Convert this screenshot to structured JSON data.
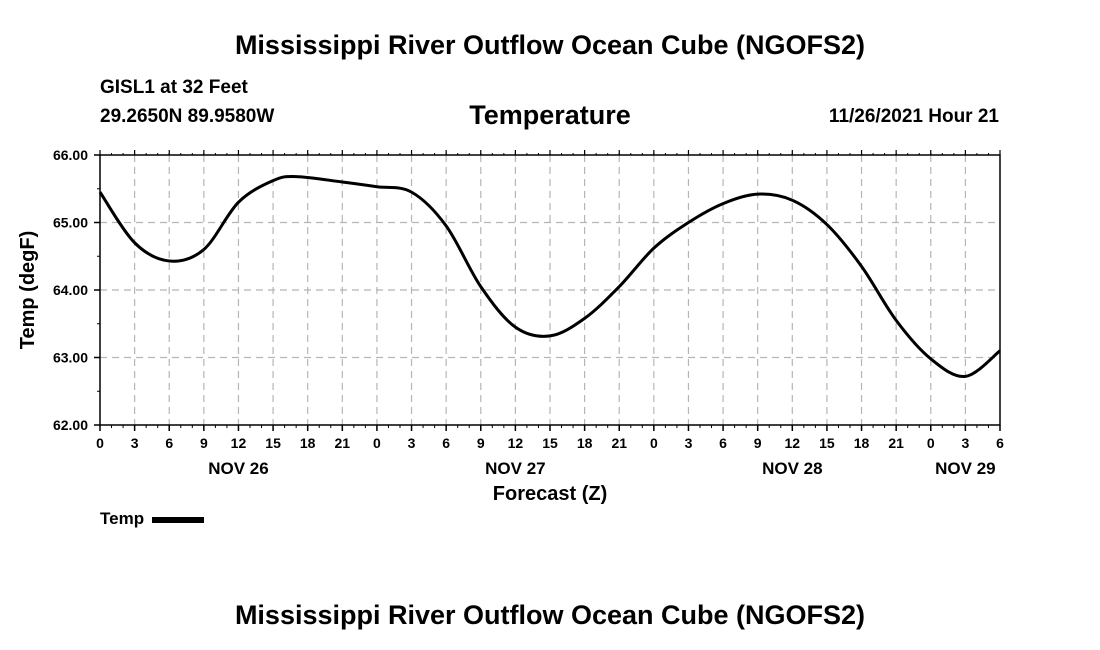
{
  "page": {
    "title_top": "Mississippi River Outflow Ocean Cube (NGOFS2)",
    "title_bottom": "Mississippi River Outflow Ocean Cube (NGOFS2)",
    "station": "GISL1 at 32 Feet",
    "coords": "29.2650N  89.9580W",
    "variable": "Temperature",
    "datetime": "11/26/2021 Hour 21",
    "legend_label": "Temp"
  },
  "chart_data": {
    "type": "line",
    "title": "Temperature",
    "xlabel": "Forecast (Z)",
    "ylabel": "Temp (degF)",
    "ylim": [
      62.0,
      66.0
    ],
    "xlim": [
      0,
      78
    ],
    "x_unit": "hours from Nov 26 00Z",
    "grid": true,
    "y_ticks": [
      "62.00",
      "63.00",
      "64.00",
      "65.00",
      "66.00"
    ],
    "x_ticks": [
      "0",
      "3",
      "6",
      "9",
      "12",
      "15",
      "18",
      "21",
      "0",
      "3",
      "6",
      "9",
      "12",
      "15",
      "18",
      "21",
      "0",
      "3",
      "6",
      "9",
      "12",
      "15",
      "18",
      "21",
      "0",
      "3",
      "6"
    ],
    "day_labels": [
      {
        "label": "NOV 26",
        "hour": 12
      },
      {
        "label": "NOV 27",
        "hour": 36
      },
      {
        "label": "NOV 28",
        "hour": 60
      },
      {
        "label": "NOV 29",
        "hour": 75
      }
    ],
    "series": [
      {
        "name": "Temp",
        "x": [
          0,
          3,
          6,
          9,
          12,
          15,
          17,
          21,
          24,
          27,
          30,
          33,
          36,
          39,
          42,
          45,
          48,
          51,
          54,
          57,
          60,
          63,
          66,
          69,
          72,
          75,
          78
        ],
        "values": [
          65.45,
          64.7,
          64.43,
          64.6,
          65.3,
          65.62,
          65.68,
          65.6,
          65.53,
          65.45,
          64.95,
          64.05,
          63.45,
          63.32,
          63.58,
          64.05,
          64.62,
          65.0,
          65.28,
          65.42,
          65.33,
          64.97,
          64.35,
          63.55,
          62.98,
          62.72,
          63.1
        ]
      }
    ]
  }
}
